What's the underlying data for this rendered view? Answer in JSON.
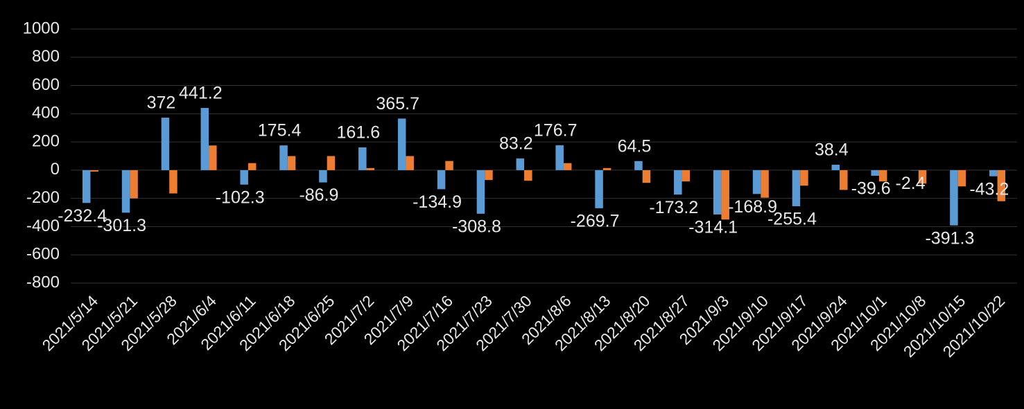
{
  "chart_data": {
    "type": "bar",
    "categories": [
      "2021/5/14",
      "2021/5/21",
      "2021/5/28",
      "2021/6/4",
      "2021/6/11",
      "2021/6/18",
      "2021/6/25",
      "2021/7/2",
      "2021/7/9",
      "2021/7/16",
      "2021/7/23",
      "2021/7/30",
      "2021/8/6",
      "2021/8/13",
      "2021/8/20",
      "2021/8/27",
      "2021/9/3",
      "2021/9/10",
      "2021/9/17",
      "2021/9/24",
      "2021/10/1",
      "2021/10/8",
      "2021/10/15",
      "2021/10/22"
    ],
    "series": [
      {
        "color": "#5b9bd5",
        "labeled": true,
        "values": [
          -232.4,
          -301.3,
          372,
          441.2,
          -102.3,
          175.4,
          -86.9,
          161.6,
          365.7,
          -134.9,
          -308.8,
          83.2,
          176.7,
          -269.7,
          64.5,
          -173.2,
          -314.1,
          -168.9,
          -255.4,
          38.4,
          -39.6,
          -2.4,
          -391.3,
          -43.2
        ]
      },
      {
        "color": "#ed7d31",
        "labeled": false,
        "values": [
          -10,
          -200,
          -165,
          175,
          50,
          100,
          100,
          15,
          100,
          65,
          -70,
          -75,
          50,
          15,
          -90,
          -80,
          -350,
          -195,
          -110,
          -140,
          -80,
          -95,
          -115,
          -220
        ]
      }
    ],
    "ylim": [
      -800,
      1000
    ],
    "yticks": [
      -800,
      -600,
      -400,
      -200,
      0,
      200,
      400,
      600,
      800,
      1000
    ],
    "grid": true
  }
}
